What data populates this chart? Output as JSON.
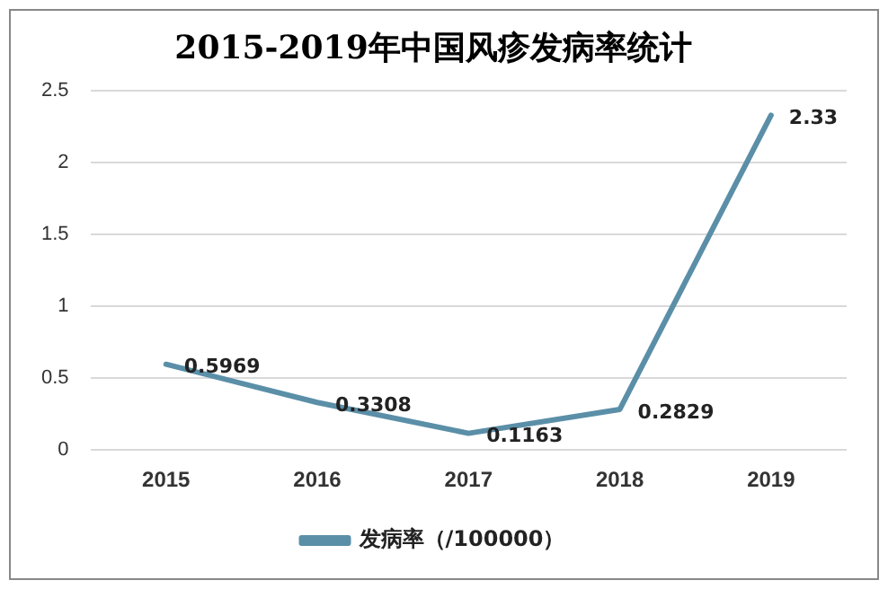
{
  "chart_data": {
    "type": "line",
    "title": "2015-2019年中国风疹发病率统计",
    "categories": [
      "2015",
      "2016",
      "2017",
      "2018",
      "2019"
    ],
    "series": [
      {
        "name": "发病率（/100000）",
        "color": "#5b8fa8",
        "values": [
          0.5969,
          0.3308,
          0.1163,
          0.2829,
          2.33
        ]
      }
    ],
    "ylim": [
      0,
      2.5
    ],
    "yticks": [
      0,
      0.5,
      1,
      1.5,
      2,
      2.5
    ],
    "grid": "y",
    "legend": "bottom",
    "marker": "none",
    "data_labels": true
  }
}
